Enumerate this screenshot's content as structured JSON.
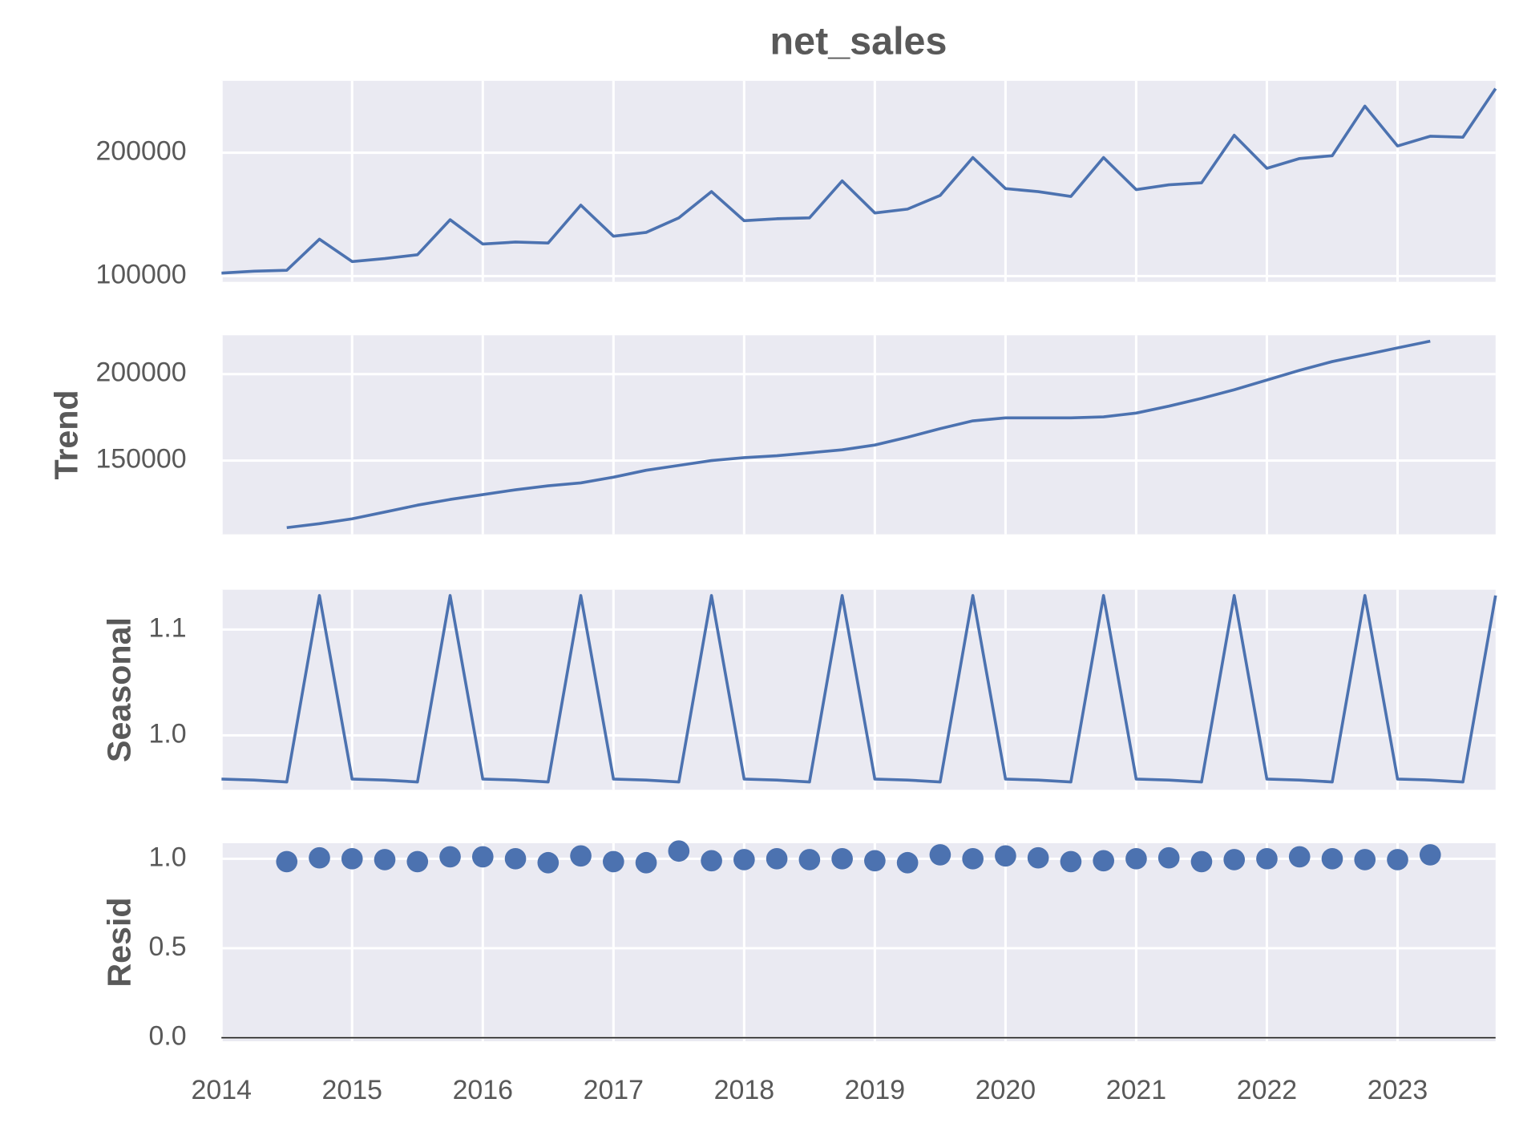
{
  "chart_data": [
    {
      "type": "line",
      "title": "net_sales",
      "color": "#4c72b0",
      "grid": true,
      "x": [
        2014,
        2014.25,
        2014.5,
        2014.75,
        2015,
        2015.25,
        2015.5,
        2015.75,
        2016,
        2016.25,
        2016.5,
        2016.75,
        2017,
        2017.25,
        2017.5,
        2017.75,
        2018,
        2018.25,
        2018.5,
        2018.75,
        2019,
        2019.25,
        2019.5,
        2019.75,
        2020,
        2020.25,
        2020.5,
        2020.75,
        2021,
        2021.25,
        2021.5,
        2021.75,
        2022,
        2022.25,
        2022.5,
        2022.75,
        2023,
        2023.25,
        2023.5,
        2023.75
      ],
      "values": [
        102400,
        104000,
        104700,
        129900,
        111800,
        114200,
        117300,
        145700,
        126000,
        127600,
        126800,
        157500,
        132300,
        135400,
        147200,
        168500,
        144900,
        146500,
        147200,
        177200,
        151200,
        154300,
        165400,
        196100,
        170900,
        168500,
        164600,
        196100,
        170100,
        174000,
        175600,
        214200,
        187400,
        195300,
        197600,
        237800,
        205500,
        213400,
        212600,
        252000
      ],
      "xlim": [
        2014,
        2023.75
      ],
      "xticks": [
        2014,
        2015,
        2016,
        2017,
        2018,
        2019,
        2020,
        2021,
        2022,
        2023
      ],
      "ylim": [
        95300,
        258300
      ],
      "yticks": [
        100000,
        200000
      ]
    },
    {
      "type": "line",
      "ylabel": "Trend",
      "color": "#4c72b0",
      "grid": true,
      "x": [
        2014,
        2014.25,
        2014.5,
        2014.75,
        2015,
        2015.25,
        2015.5,
        2015.75,
        2016,
        2016.25,
        2016.5,
        2016.75,
        2017,
        2017.25,
        2017.5,
        2017.75,
        2018,
        2018.25,
        2018.5,
        2018.75,
        2019,
        2019.25,
        2019.5,
        2019.75,
        2020,
        2020.25,
        2020.5,
        2020.75,
        2021,
        2021.25,
        2021.5,
        2021.75,
        2022,
        2022.25,
        2022.5,
        2022.75,
        2023,
        2023.25,
        2023.5,
        2023.75
      ],
      "values": [
        null,
        null,
        111200,
        113500,
        116300,
        120200,
        124200,
        127500,
        130300,
        133100,
        135400,
        137100,
        140400,
        144400,
        147200,
        150000,
        151700,
        152800,
        154500,
        156200,
        159000,
        163500,
        168500,
        173000,
        174700,
        174700,
        174700,
        175300,
        177500,
        181500,
        186000,
        191000,
        196600,
        202200,
        207300,
        211200,
        215200,
        219100,
        null,
        null
      ],
      "xlim": [
        2014,
        2023.75
      ],
      "xticks": [
        2014,
        2015,
        2016,
        2017,
        2018,
        2019,
        2020,
        2021,
        2022,
        2023
      ],
      "ylim": [
        107300,
        222500
      ],
      "yticks": [
        150000,
        200000
      ]
    },
    {
      "type": "line",
      "ylabel": "Seasonal",
      "color": "#4c72b0",
      "grid": true,
      "x": [
        2014,
        2014.25,
        2014.5,
        2014.75,
        2015,
        2015.25,
        2015.5,
        2015.75,
        2016,
        2016.25,
        2016.5,
        2016.75,
        2017,
        2017.25,
        2017.5,
        2017.75,
        2018,
        2018.25,
        2018.5,
        2018.75,
        2019,
        2019.25,
        2019.5,
        2019.75,
        2020,
        2020.25,
        2020.5,
        2020.75,
        2021,
        2021.25,
        2021.5,
        2021.75,
        2022,
        2022.25,
        2022.5,
        2022.75,
        2023,
        2023.25,
        2023.5,
        2023.75
      ],
      "values": [
        0.9587,
        0.9578,
        0.956,
        1.1321,
        0.9587,
        0.9578,
        0.956,
        1.1321,
        0.9587,
        0.9578,
        0.956,
        1.1321,
        0.9587,
        0.9578,
        0.956,
        1.1321,
        0.9587,
        0.9578,
        0.956,
        1.1321,
        0.9587,
        0.9578,
        0.956,
        1.1321,
        0.9587,
        0.9578,
        0.956,
        1.1321,
        0.9587,
        0.9578,
        0.956,
        1.1321,
        0.9587,
        0.9578,
        0.956,
        1.1321,
        0.9587,
        0.9578,
        0.956,
        1.1321
      ],
      "xlim": [
        2014,
        2023.75
      ],
      "xticks": [
        2014,
        2015,
        2016,
        2017,
        2018,
        2019,
        2020,
        2021,
        2022,
        2023
      ],
      "ylim": [
        0.9486,
        1.1376
      ],
      "yticks": [
        {
          "value": 1.0,
          "label": "1.0"
        },
        1.1
      ]
    },
    {
      "type": "scatter",
      "ylabel": "Resid",
      "color": "#4c72b0",
      "grid": true,
      "x": [
        2014.5,
        2014.75,
        2015,
        2015.25,
        2015.5,
        2015.75,
        2016,
        2016.25,
        2016.5,
        2016.75,
        2017,
        2017.25,
        2017.5,
        2017.75,
        2018,
        2018.25,
        2018.5,
        2018.75,
        2019,
        2019.25,
        2019.5,
        2019.75,
        2020,
        2020.25,
        2020.5,
        2020.75,
        2021,
        2021.25,
        2021.5,
        2021.75,
        2022,
        2022.25,
        2022.5,
        2022.75,
        2023,
        2023.25
      ],
      "values": [
        0.984,
        1.005,
        1.0,
        0.995,
        0.984,
        1.011,
        1.011,
        1.0,
        0.978,
        1.016,
        0.984,
        0.978,
        1.043,
        0.989,
        0.995,
        1.0,
        0.995,
        1.0,
        0.989,
        0.978,
        1.022,
        1.0,
        1.016,
        1.005,
        0.984,
        0.989,
        1.0,
        1.005,
        0.984,
        0.995,
        1.0,
        1.011,
        1.0,
        0.995,
        0.995,
        1.022
      ],
      "xlim": [
        2014,
        2023.75
      ],
      "xticks": [
        2014,
        2015,
        2016,
        2017,
        2018,
        2019,
        2020,
        2021,
        2022,
        2023
      ],
      "ylim": [
        -0.02,
        1.087
      ],
      "yticks": [
        {
          "value": 0,
          "label": "0.0"
        },
        0.5,
        {
          "value": 1,
          "label": "1.0"
        }
      ]
    }
  ]
}
